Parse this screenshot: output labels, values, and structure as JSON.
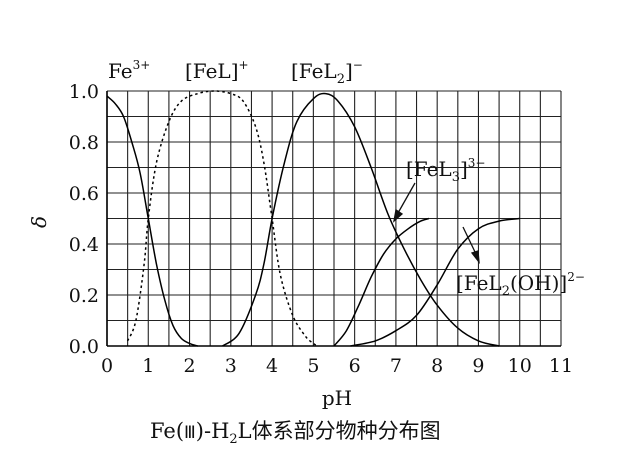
{
  "chart_data": {
    "type": "line",
    "title": "Fe(Ⅲ)-H₂L体系部分物种分布图",
    "title_parts": {
      "a": "Fe(",
      "b": "Ⅲ",
      "c": ")-H",
      "d": "2",
      "e": "L体系部分物种分布图"
    },
    "xlabel": "pH",
    "ylabel": "δ",
    "xlim": [
      0,
      11
    ],
    "ylim": [
      0.0,
      1.0
    ],
    "xticks": [
      "0",
      "1",
      "2",
      "3",
      "4",
      "5",
      "6",
      "7",
      "8",
      "9",
      "10",
      "11"
    ],
    "yticks": [
      "0.0",
      "0.2",
      "0.4",
      "0.6",
      "0.8",
      "1.0"
    ],
    "grid": true,
    "grid_step_x": 0.5,
    "grid_step_y": 0.1,
    "series": [
      {
        "name": "Fe3+",
        "label_parts": {
          "base": "Fe",
          "sup": "3+"
        },
        "style": "solid",
        "x": [
          0,
          0.2,
          0.4,
          0.6,
          0.8,
          1.0,
          1.2,
          1.4,
          1.6,
          1.8,
          2.0,
          2.2
        ],
        "y": [
          0.98,
          0.95,
          0.9,
          0.8,
          0.68,
          0.5,
          0.32,
          0.18,
          0.08,
          0.03,
          0.01,
          0.0
        ]
      },
      {
        "name": "[FeL]+",
        "label_parts": {
          "base": "[FeL]",
          "sup": "+"
        },
        "style": "dashed",
        "x": [
          0.5,
          0.7,
          0.9,
          1.0,
          1.2,
          1.5,
          1.8,
          2.2,
          2.6,
          3.0,
          3.3,
          3.6,
          3.8,
          4.0,
          4.2,
          4.5,
          4.8,
          5.0,
          5.1
        ],
        "y": [
          0.02,
          0.1,
          0.32,
          0.5,
          0.72,
          0.88,
          0.96,
          0.99,
          1.0,
          0.99,
          0.96,
          0.86,
          0.72,
          0.5,
          0.28,
          0.12,
          0.04,
          0.01,
          0.0
        ]
      },
      {
        "name": "[FeL2]-",
        "label_parts": {
          "base1": "[FeL",
          "sub": "2",
          "base2": "]",
          "sup": "−"
        },
        "style": "solid",
        "x": [
          2.8,
          3.2,
          3.6,
          3.8,
          4.0,
          4.3,
          4.6,
          5.0,
          5.3,
          5.6,
          6.0,
          6.4,
          6.8,
          7.2,
          7.6,
          8.0,
          8.5,
          9.0,
          9.5
        ],
        "y": [
          0.0,
          0.05,
          0.2,
          0.32,
          0.5,
          0.72,
          0.88,
          0.97,
          0.99,
          0.96,
          0.86,
          0.7,
          0.52,
          0.38,
          0.26,
          0.16,
          0.07,
          0.02,
          0.0
        ]
      },
      {
        "name": "[FeL3]3-",
        "label_parts": {
          "base1": "[FeL",
          "sub": "3",
          "base2": "]",
          "sup": "3−"
        },
        "style": "solid",
        "x": [
          5.5,
          5.8,
          6.1,
          6.4,
          6.7,
          7.0,
          7.3,
          7.6,
          7.8
        ],
        "y": [
          0.0,
          0.06,
          0.16,
          0.27,
          0.36,
          0.42,
          0.46,
          0.49,
          0.5
        ]
      },
      {
        "name": "[FeL2(OH)]2-",
        "label_parts": {
          "base1": "[FeL",
          "sub": "2",
          "base2": "(OH)]",
          "sup": "2−"
        },
        "style": "solid",
        "x": [
          5.9,
          6.5,
          7.0,
          7.5,
          8.0,
          8.5,
          9.0,
          9.5,
          10.0
        ],
        "y": [
          0.0,
          0.02,
          0.06,
          0.12,
          0.24,
          0.38,
          0.46,
          0.49,
          0.5
        ]
      }
    ]
  }
}
